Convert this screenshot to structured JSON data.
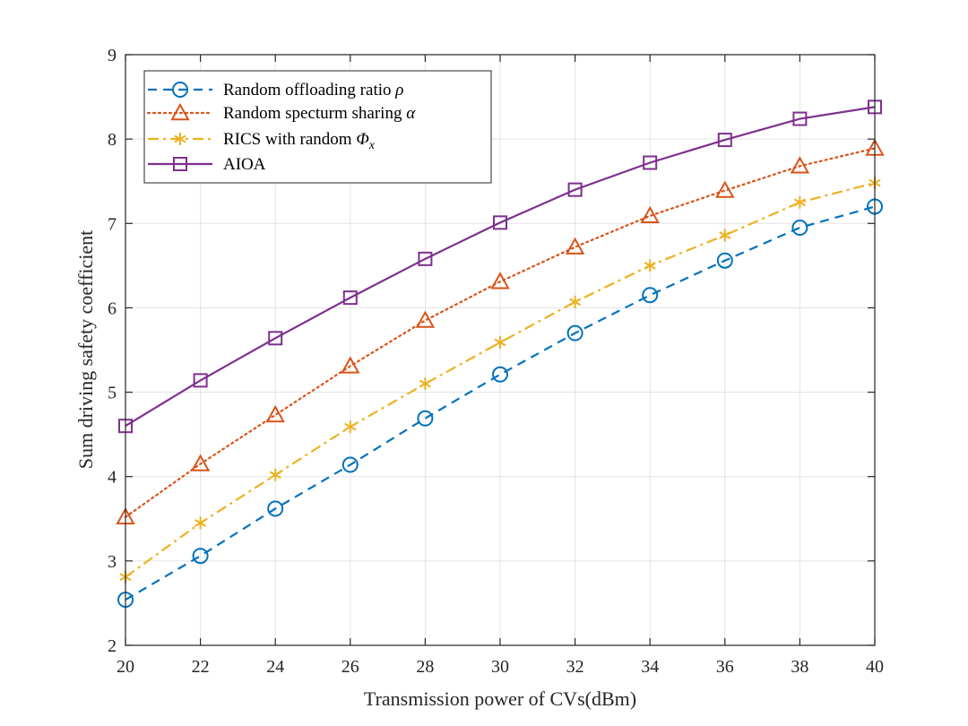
{
  "chart_data": {
    "type": "line",
    "title": "",
    "xlabel": "Transmission power of CVs(dBm)",
    "ylabel": "Sum driving safety coefficient",
    "xlim": [
      20,
      40
    ],
    "ylim": [
      2,
      9
    ],
    "xticks": [
      20,
      22,
      24,
      26,
      28,
      30,
      32,
      34,
      36,
      38,
      40
    ],
    "yticks": [
      2,
      3,
      4,
      5,
      6,
      7,
      8,
      9
    ],
    "grid": true,
    "legend_position": "top-left",
    "x": [
      20,
      22,
      24,
      26,
      28,
      30,
      32,
      34,
      36,
      38,
      40
    ],
    "series": [
      {
        "name": "Random offloading ratio",
        "symbol": "ρ",
        "subscript": "",
        "color": "#0072BD",
        "line_style": "dashed",
        "marker": "circle",
        "values": [
          2.54,
          3.06,
          3.62,
          4.14,
          4.69,
          5.21,
          5.7,
          6.15,
          6.56,
          6.95,
          7.2
        ]
      },
      {
        "name": "Random specturm sharing",
        "symbol": "α",
        "subscript": "",
        "color": "#D95319",
        "line_style": "dotted",
        "marker": "triangle",
        "values": [
          3.52,
          4.15,
          4.73,
          5.31,
          5.85,
          6.31,
          6.72,
          7.09,
          7.39,
          7.68,
          7.89
        ]
      },
      {
        "name": "RICS with random",
        "symbol": "Φ",
        "subscript": "x",
        "color": "#EDB120",
        "line_style": "dashdot",
        "marker": "asterisk",
        "values": [
          2.81,
          3.45,
          4.02,
          4.59,
          5.1,
          5.59,
          6.07,
          6.5,
          6.86,
          7.25,
          7.48
        ]
      },
      {
        "name": "AIOA",
        "symbol": "",
        "subscript": "",
        "color": "#7E2F8E",
        "line_style": "solid",
        "marker": "square",
        "values": [
          4.6,
          5.14,
          5.64,
          6.12,
          6.58,
          7.01,
          7.4,
          7.72,
          7.99,
          8.24,
          8.38
        ]
      }
    ]
  }
}
